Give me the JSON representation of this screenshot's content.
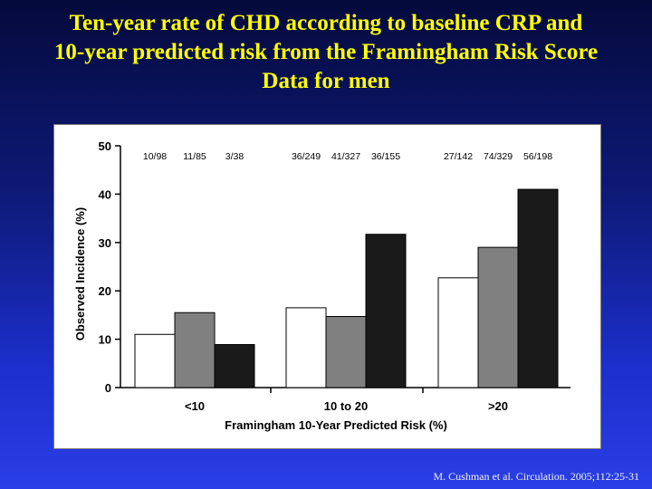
{
  "slide": {
    "title_lines": [
      "Ten-year  rate of  CHD according  to  baseline  CRP and",
      "10-year predicted risk from the Framingham Risk Score",
      "Data for men"
    ],
    "citation": "M. Cushman et al. Circulation. 2005;112:25-31"
  },
  "colors": {
    "title": "#ffff00",
    "bar_low": "#ffffff",
    "bar_mid": "#808080",
    "bar_high": "#1a1a1a"
  },
  "chart_data": {
    "type": "bar",
    "title": "",
    "xlabel": "Framingham 10-Year Predicted Risk (%)",
    "ylabel": "Observed Incidence (%)",
    "ylim": [
      0,
      50
    ],
    "yticks": [
      0,
      10,
      20,
      30,
      40,
      50
    ],
    "grid": false,
    "categories": [
      "<10",
      "10 to 20",
      ">20"
    ],
    "series": [
      {
        "values": [
          11,
          16.5,
          22.7
        ],
        "color": "#ffffff",
        "counts": [
          "10/98",
          "36/249",
          "27/142"
        ]
      },
      {
        "values": [
          15.5,
          14.7,
          29
        ],
        "color": "#808080",
        "counts": [
          "11/85",
          "41/327",
          "74/329"
        ]
      },
      {
        "values": [
          8.9,
          31.7,
          41
        ],
        "color": "#1a1a1a",
        "counts": [
          "3/38",
          "36/155",
          "56/198"
        ]
      }
    ]
  }
}
